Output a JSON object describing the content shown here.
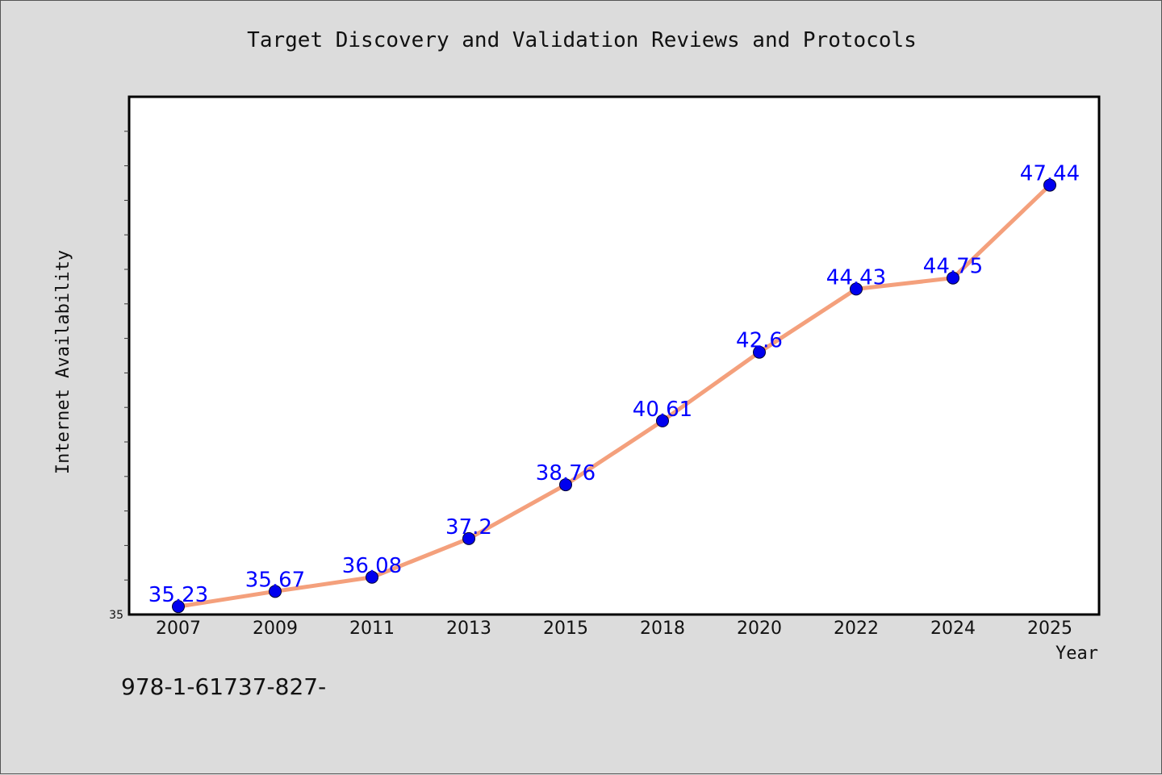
{
  "chart_data": {
    "type": "line",
    "title": "Target Discovery and Validation Reviews and Protocols",
    "xlabel": "Year",
    "ylabel": "Internet Availability",
    "categories": [
      "2007",
      "2009",
      "2011",
      "2013",
      "2015",
      "2018",
      "2020",
      "2022",
      "2024",
      "2025"
    ],
    "series": [
      {
        "values": [
          35.23,
          35.67,
          36.08,
          37.2,
          38.76,
          40.61,
          42.6,
          44.43,
          44.75,
          47.44
        ],
        "labels": [
          "35.23",
          "35.67",
          "36.08",
          "37.2",
          "38.76",
          "40.61",
          "42.6",
          "44.43",
          "44.75",
          "47.44"
        ]
      }
    ],
    "ylim": [
      35,
      50
    ],
    "yticks_labeled": [
      "35"
    ],
    "grid": false,
    "colors": {
      "line": "#f4a07c",
      "marker": "#0000ee",
      "data_label": "#0000ff",
      "plot_background": "#ffffff",
      "figure_background": "#dcdcdc"
    }
  },
  "footnote": "978-1-61737-827-"
}
